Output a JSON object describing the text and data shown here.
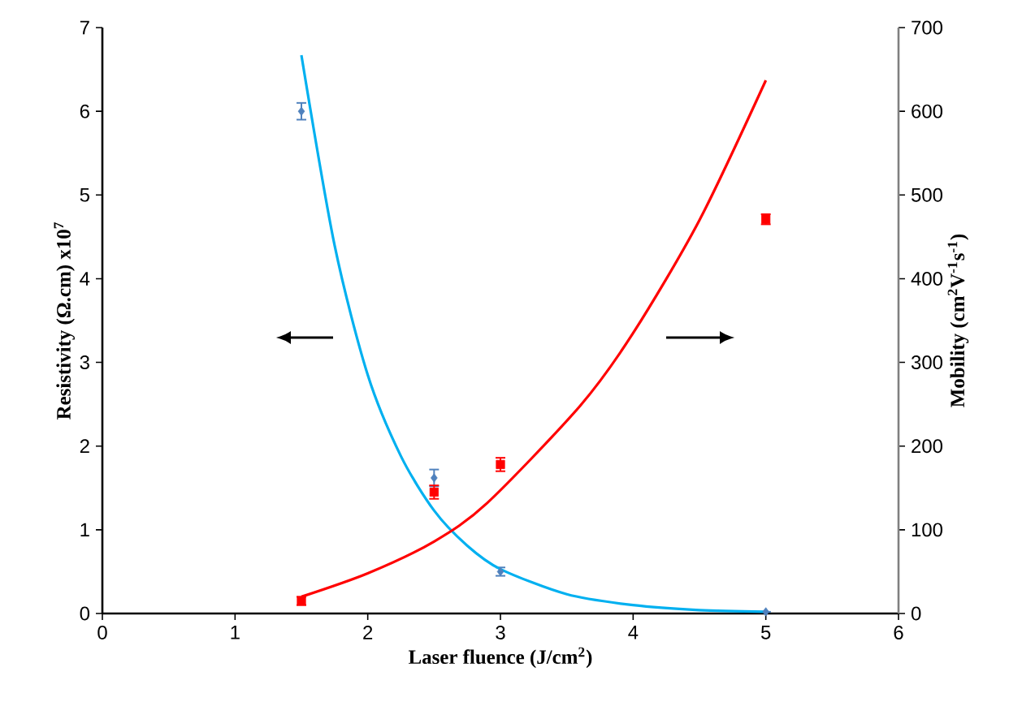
{
  "chart_data": {
    "type": "scatter",
    "xlabel": "Laser fluence (J/cm$^{2}$)",
    "ylabel": "Resistivity (Ω.cm) x10$^{7}$",
    "y2label": "Mobility (cm$^{2}$V$^{-1}$s$^{-1}$)",
    "xlim": [
      0,
      6
    ],
    "xticks": [
      0,
      1,
      2,
      3,
      4,
      5,
      6
    ],
    "ylim": [
      0,
      7
    ],
    "yticks": [
      0,
      1,
      2,
      3,
      4,
      5,
      6,
      7
    ],
    "y2lim": [
      0,
      700
    ],
    "y2ticks": [
      0,
      100,
      200,
      300,
      400,
      500,
      600,
      700
    ],
    "series": [
      {
        "color": "#4f81bd",
        "marker": "diamond",
        "x": [
          1.5,
          2.5,
          3,
          5
        ],
        "values": [
          6.0,
          1.62,
          0.5,
          0.02
        ],
        "errors": [
          0.1,
          0.1,
          0.05,
          null
        ]
      },
      {
        "type": "line",
        "color": "#00b0f0",
        "marker": "none",
        "x": [
          1.5,
          1.75,
          2,
          2.25,
          2.5,
          2.75,
          3,
          3.5,
          4,
          4.5,
          5
        ],
        "values": [
          6.67,
          4.4,
          2.85,
          1.88,
          1.23,
          0.81,
          0.53,
          0.23,
          0.1,
          0.04,
          0.02
        ]
      },
      {
        "axis": "y2",
        "color": "#ff0000",
        "marker": "square",
        "x": [
          1.5,
          2.5,
          3,
          5
        ],
        "values": [
          15,
          145,
          178,
          471
        ],
        "errors": [
          5,
          8,
          8,
          6
        ]
      },
      {
        "type": "line",
        "axis": "y2",
        "color": "#ff0000",
        "marker": "none",
        "x": [
          1.5,
          2,
          2.5,
          2.9,
          3.6,
          4,
          4.5,
          5
        ],
        "values": [
          20,
          48,
          86,
          132,
          248,
          335,
          470,
          637
        ]
      }
    ]
  }
}
